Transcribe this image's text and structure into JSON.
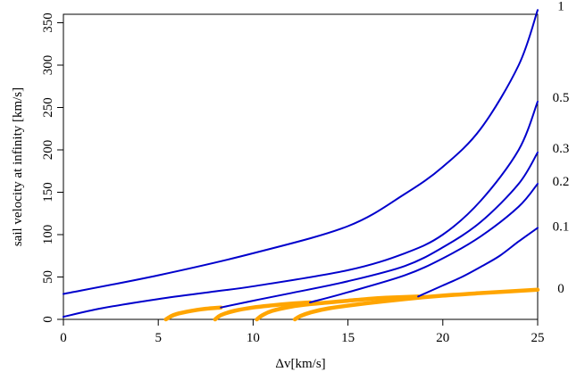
{
  "chart_data": {
    "type": "line",
    "title": "",
    "xlabel": "Δv[km/s]",
    "ylabel": "sail velocity at infinity [km/s]",
    "xlim": [
      0,
      25
    ],
    "ylim": [
      0,
      360
    ],
    "x_ticks": [
      0,
      5,
      10,
      15,
      20,
      25
    ],
    "x_tick_labels": [
      "0",
      "5",
      "10",
      "15",
      "20",
      "25"
    ],
    "y_ticks": [
      0,
      50,
      100,
      150,
      200,
      250,
      300,
      350
    ],
    "y_tick_labels": [
      "0",
      "50",
      "100",
      "150",
      "200",
      "250",
      "300",
      "350"
    ],
    "grid": false,
    "colors": {
      "blue_series": "#0000cc",
      "orange_series": "#ffa500"
    },
    "series": [
      {
        "name": "1",
        "color": "#0000cc",
        "x": [
          0,
          5,
          10,
          15,
          18,
          20,
          22,
          24,
          25
        ],
        "y": [
          30,
          52,
          78,
          110,
          148,
          180,
          225,
          300,
          365
        ]
      },
      {
        "name": "0.5",
        "color": "#0000cc",
        "x": [
          0,
          2,
          5,
          8,
          10,
          15,
          18,
          20,
          22,
          24,
          25
        ],
        "y": [
          3,
          13,
          24,
          33,
          39,
          58,
          78,
          100,
          140,
          200,
          257
        ]
      },
      {
        "name": "0.3",
        "color": "#0000cc",
        "x": [
          8.3,
          10,
          12,
          15,
          18,
          20,
          22,
          24,
          25
        ],
        "y": [
          14,
          22,
          31,
          45,
          63,
          85,
          115,
          160,
          197
        ]
      },
      {
        "name": "0.2",
        "color": "#0000cc",
        "x": [
          13,
          15,
          18,
          20,
          22,
          24,
          25
        ],
        "y": [
          20,
          32,
          52,
          72,
          98,
          133,
          160
        ]
      },
      {
        "name": "0.1",
        "color": "#0000cc",
        "x": [
          18.7,
          20,
          21,
          22,
          23,
          24,
          25
        ],
        "y": [
          27,
          40,
          50,
          62,
          75,
          92,
          108
        ]
      },
      {
        "name": "0",
        "color": "#ffa500",
        "x": [
          12.2,
          12.5,
          13,
          14,
          16,
          18,
          20,
          22,
          25
        ],
        "y": [
          0,
          4,
          8,
          13,
          19,
          24,
          28,
          31,
          35
        ]
      },
      {
        "name": "",
        "color": "#ffa500",
        "x": [
          10.2,
          10.5,
          11,
          12,
          13,
          14,
          15,
          16,
          17,
          18.7
        ],
        "y": [
          0,
          5,
          10,
          15,
          18,
          20,
          22,
          24,
          25.5,
          27
        ]
      },
      {
        "name": "",
        "color": "#ffa500",
        "x": [
          8,
          8.3,
          9,
          10,
          11,
          12,
          13
        ],
        "y": [
          0,
          5,
          10,
          14,
          16.5,
          18.5,
          20
        ]
      },
      {
        "name": "",
        "color": "#ffa500",
        "x": [
          5.4,
          5.7,
          6,
          6.5,
          7,
          7.5,
          8.3
        ],
        "y": [
          0,
          4,
          6.5,
          9,
          11,
          12.5,
          14
        ]
      }
    ],
    "right_labels": [
      {
        "text": "1",
        "y": 370
      },
      {
        "text": "0.5",
        "y": 262
      },
      {
        "text": "0.3",
        "y": 202
      },
      {
        "text": "0.2",
        "y": 163
      },
      {
        "text": "0.1",
        "y": 110
      },
      {
        "text": "0",
        "y": 37
      }
    ]
  }
}
